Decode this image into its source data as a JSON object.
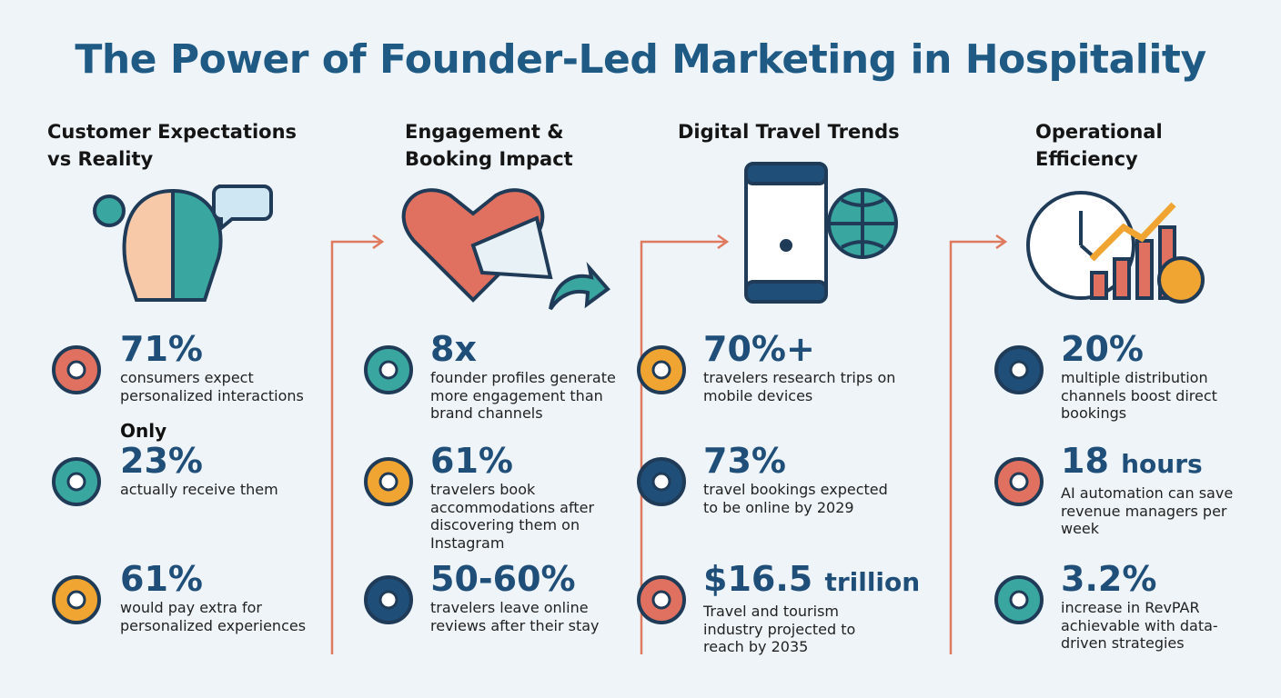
{
  "title": "The Power of Founder-Led Marketing in Hospitality",
  "columns": [
    {
      "heading": [
        "Customer Expectations",
        "vs Reality"
      ],
      "stats": [
        {
          "value": "71%",
          "text": "consumers expect personalized interactions"
        },
        {
          "prefix": "Only",
          "value": "23%",
          "text": "actually receive them"
        },
        {
          "value": "61%",
          "text": "would pay extra for personalized experiences"
        }
      ]
    },
    {
      "heading": [
        "Engagement &",
        "Booking Impact"
      ],
      "stats": [
        {
          "value": "8x",
          "text": "founder profiles generate more engagement than brand channels"
        },
        {
          "value": "61%",
          "text": "travelers book accommodations after discovering them on Instagram"
        },
        {
          "value": "50-60%",
          "text": "travelers leave online reviews after their stay"
        }
      ]
    },
    {
      "heading": [
        "Digital Travel Trends"
      ],
      "stats": [
        {
          "value": "70%+",
          "text": "travelers research trips on mobile devices"
        },
        {
          "value": "73%",
          "text": "travel bookings expected to be online by 2029"
        },
        {
          "value": "$16.5",
          "unit": "trillion",
          "text": "Travel and tourism industry projected to reach by 2035"
        }
      ]
    },
    {
      "heading": [
        "Operational",
        "Efficiency"
      ],
      "stats": [
        {
          "value": "20%",
          "text": "multiple distribution channels boost direct bookings"
        },
        {
          "value": "18",
          "unit": "hours",
          "text": "AI automation can save revenue managers per week"
        },
        {
          "value": "3.2%",
          "text": "increase in RevPAR achievable with data-driven strategies"
        }
      ]
    }
  ]
}
